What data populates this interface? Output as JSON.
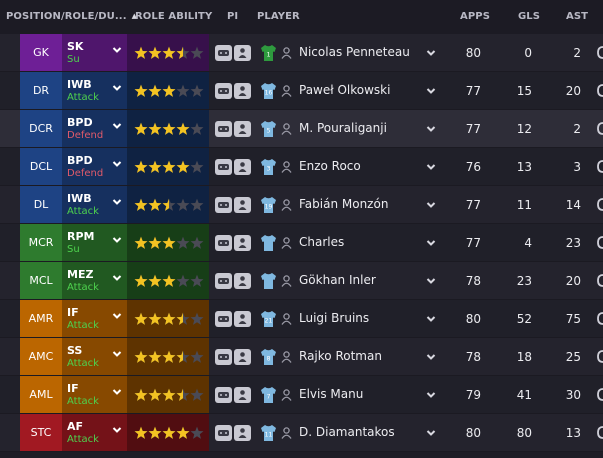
{
  "columns": {
    "position": "POSITION/ROLE/DU...",
    "role_ability": "ROLE ABILITY",
    "pi": "PI",
    "player": "PLAYER",
    "apps": "APPS",
    "gls": "GLS",
    "ast": "AST"
  },
  "sort_indicator": "▲",
  "colors": {
    "gk": "#6e1f96",
    "defence": "#1e4384",
    "midfield": "#2e7b2e",
    "attack": "#bb6600",
    "striker": "#a11922",
    "duty_attack": "#4ed24e",
    "duty_defend": "#e05a6a",
    "duty_support": "#4ed24e",
    "star_filled": "#f3c322",
    "star_empty": "#4a4a55"
  },
  "rows": [
    {
      "position": "GK",
      "zone": "gk",
      "role": "SK",
      "duty": "Su",
      "duty_type": "support",
      "stars": 3.5,
      "kit": "gk",
      "kit_number": "1",
      "player": "Nicolas Penneteau",
      "apps": "80",
      "gls": "0",
      "ast": "2",
      "row_style": "normal"
    },
    {
      "position": "DR",
      "zone": "defence",
      "role": "IWB",
      "duty": "Attack",
      "duty_type": "attack",
      "stars": 3,
      "kit": "outfield",
      "kit_number": "16",
      "player": "Paweł Olkowski",
      "apps": "77",
      "gls": "15",
      "ast": "20",
      "row_style": "alt"
    },
    {
      "position": "DCR",
      "zone": "defence",
      "role": "BPD",
      "duty": "Defend",
      "duty_type": "defend",
      "stars": 4,
      "kit": "outfield",
      "kit_number": "5",
      "player": "M. Pouraliganji",
      "apps": "77",
      "gls": "12",
      "ast": "2",
      "row_style": "sel"
    },
    {
      "position": "DCL",
      "zone": "defence",
      "role": "BPD",
      "duty": "Defend",
      "duty_type": "defend",
      "stars": 4,
      "kit": "outfield",
      "kit_number": "3",
      "player": "Enzo Roco",
      "apps": "76",
      "gls": "13",
      "ast": "3",
      "row_style": "alt"
    },
    {
      "position": "DL",
      "zone": "defence",
      "role": "IWB",
      "duty": "Attack",
      "duty_type": "attack",
      "stars": 2.5,
      "kit": "outfield",
      "kit_number": "19",
      "player": "Fabián Monzón",
      "apps": "77",
      "gls": "11",
      "ast": "14",
      "row_style": "normal"
    },
    {
      "position": "MCR",
      "zone": "midfield",
      "role": "RPM",
      "duty": "Su",
      "duty_type": "support",
      "stars": 3,
      "kit": "outfield",
      "kit_number": "",
      "player": "Charles",
      "apps": "77",
      "gls": "4",
      "ast": "23",
      "row_style": "alt"
    },
    {
      "position": "MCL",
      "zone": "midfield",
      "role": "MEZ",
      "duty": "Attack",
      "duty_type": "attack",
      "stars": 3,
      "kit": "outfield",
      "kit_number": "",
      "player": "Gökhan Inler",
      "apps": "78",
      "gls": "23",
      "ast": "20",
      "row_style": "normal"
    },
    {
      "position": "AMR",
      "zone": "attack",
      "role": "IF",
      "duty": "Attack",
      "duty_type": "attack",
      "stars": 3.5,
      "kit": "outfield",
      "kit_number": "21",
      "player": "Luigi Bruins",
      "apps": "80",
      "gls": "52",
      "ast": "75",
      "row_style": "alt"
    },
    {
      "position": "AMC",
      "zone": "attack",
      "role": "SS",
      "duty": "Attack",
      "duty_type": "attack",
      "stars": 3.5,
      "kit": "outfield",
      "kit_number": "8",
      "player": "Rajko Rotman",
      "apps": "78",
      "gls": "18",
      "ast": "25",
      "row_style": "normal"
    },
    {
      "position": "AML",
      "zone": "attack",
      "role": "IF",
      "duty": "Attack",
      "duty_type": "attack",
      "stars": 3.5,
      "kit": "outfield",
      "kit_number": "7",
      "player": "Elvis Manu",
      "apps": "79",
      "gls": "41",
      "ast": "30",
      "row_style": "alt"
    },
    {
      "position": "STC",
      "zone": "striker",
      "role": "AF",
      "duty": "Attack",
      "duty_type": "attack",
      "stars": 4,
      "kit": "outfield",
      "kit_number": "11",
      "player": "D. Diamantakos",
      "apps": "80",
      "gls": "80",
      "ast": "13",
      "row_style": "normal"
    }
  ]
}
